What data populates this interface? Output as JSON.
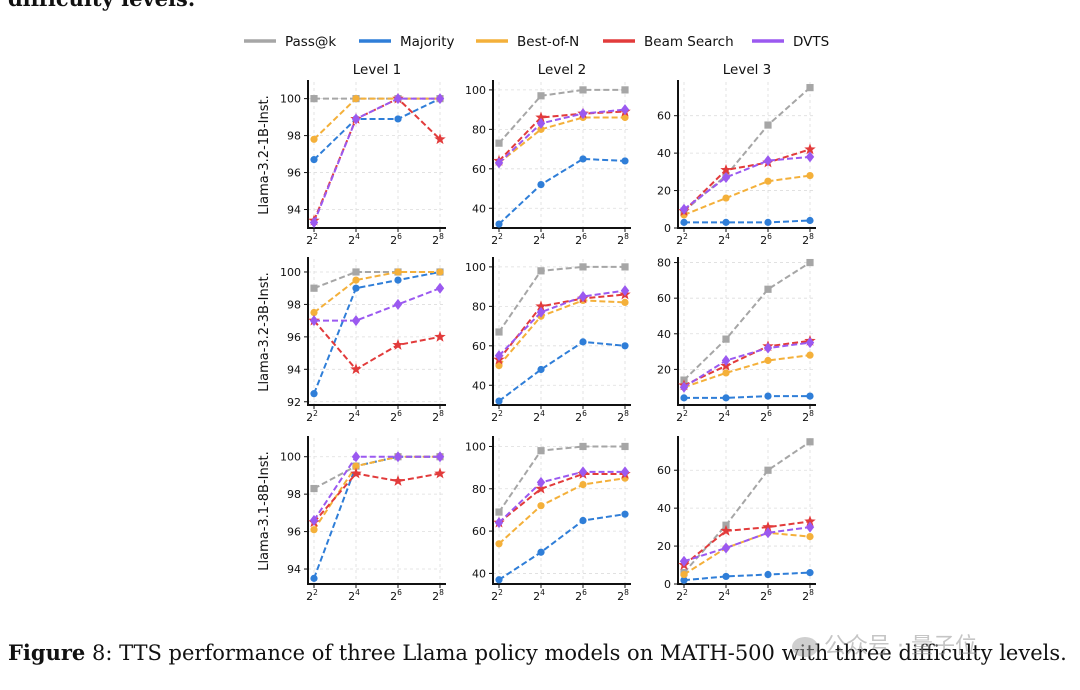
{
  "top_text": "difficulty levels.",
  "caption": {
    "label": "Figure",
    "number": "8:",
    "text": " TTS performance of three Llama policy models on MATH-500 with three difficulty levels."
  },
  "watermark": "公众号 · 量子位",
  "colors": {
    "Pass@k": "#a6a6a6",
    "Majority": "#2f7ed8",
    "Best-of-N": "#f4b03a",
    "Beam Search": "#e23b3b",
    "DVTS": "#9b59f0"
  },
  "chart_data": {
    "type": "line",
    "legend": [
      "Pass@k",
      "Majority",
      "Best-of-N",
      "Beam Search",
      "DVTS"
    ],
    "legend_placement": "top",
    "column_titles": [
      "Level 1",
      "Level 2",
      "Level 3"
    ],
    "row_labels": [
      "Llama-3.2-1B-Inst.",
      "Llama-3.2-3B-Inst.",
      "Llama-3.1-8B-Inst."
    ],
    "x_exponents": [
      2,
      4,
      6,
      8
    ],
    "x_tick_labels": [
      "2",
      "4",
      "6",
      "8"
    ],
    "grid": true,
    "panels": [
      {
        "row": 0,
        "col": 0,
        "ylim": [
          93,
          100.9
        ],
        "yticks": [
          94,
          96,
          98,
          100
        ],
        "series": {
          "Pass@k": [
            100,
            100,
            100,
            100
          ],
          "Majority": [
            96.7,
            98.9,
            98.9,
            100
          ],
          "Best-of-N": [
            97.8,
            100,
            100,
            100
          ],
          "Beam Search": [
            93.4,
            98.9,
            100,
            97.8
          ],
          "DVTS": [
            93.3,
            98.9,
            100,
            100
          ]
        }
      },
      {
        "row": 0,
        "col": 1,
        "ylim": [
          30,
          104
        ],
        "yticks": [
          40,
          60,
          80,
          100
        ],
        "series": {
          "Pass@k": [
            73,
            97,
            100,
            100
          ],
          "Majority": [
            32,
            52,
            65,
            64
          ],
          "Best-of-N": [
            63,
            80,
            86,
            86
          ],
          "Beam Search": [
            64,
            86,
            88,
            89
          ],
          "DVTS": [
            63,
            83,
            88,
            90
          ]
        }
      },
      {
        "row": 0,
        "col": 2,
        "ylim": [
          0,
          78
        ],
        "yticks": [
          0,
          20,
          40,
          60
        ],
        "series": {
          "Pass@k": [
            9,
            28,
            55,
            75
          ],
          "Majority": [
            3,
            3,
            3,
            4
          ],
          "Best-of-N": [
            7,
            16,
            25,
            28
          ],
          "Beam Search": [
            9,
            31,
            35,
            42
          ],
          "DVTS": [
            10,
            27,
            36,
            38
          ]
        }
      },
      {
        "row": 1,
        "col": 0,
        "ylim": [
          91.8,
          100.8
        ],
        "yticks": [
          92,
          94,
          96,
          98,
          100
        ],
        "series": {
          "Pass@k": [
            99,
            100,
            100,
            100
          ],
          "Majority": [
            92.5,
            99,
            99.5,
            100
          ],
          "Best-of-N": [
            97.5,
            99.5,
            100,
            100
          ],
          "Beam Search": [
            97,
            94,
            95.5,
            96
          ],
          "DVTS": [
            97,
            97,
            98,
            99
          ]
        }
      },
      {
        "row": 1,
        "col": 1,
        "ylim": [
          30,
          104
        ],
        "yticks": [
          40,
          60,
          80,
          100
        ],
        "series": {
          "Pass@k": [
            67,
            98,
            100,
            100
          ],
          "Majority": [
            32,
            48,
            62,
            60
          ],
          "Best-of-N": [
            50,
            75,
            83,
            82
          ],
          "Beam Search": [
            53,
            80,
            84,
            86
          ],
          "DVTS": [
            55,
            77,
            85,
            88
          ]
        }
      },
      {
        "row": 1,
        "col": 2,
        "ylim": [
          0,
          82
        ],
        "yticks": [
          20,
          40,
          60,
          80
        ],
        "series": {
          "Pass@k": [
            14,
            37,
            65,
            80
          ],
          "Majority": [
            4,
            4,
            5,
            5
          ],
          "Best-of-N": [
            10,
            18,
            25,
            28
          ],
          "Beam Search": [
            11,
            22,
            33,
            36
          ],
          "DVTS": [
            10,
            25,
            32,
            35
          ]
        }
      },
      {
        "row": 2,
        "col": 0,
        "ylim": [
          93.2,
          101
        ],
        "yticks": [
          94,
          96,
          98,
          100
        ],
        "series": {
          "Pass@k": [
            98.3,
            99.5,
            100,
            100
          ],
          "Majority": [
            93.5,
            99.5,
            100,
            100
          ],
          "Best-of-N": [
            96.1,
            99.5,
            100,
            100
          ],
          "Beam Search": [
            96.5,
            99.1,
            98.7,
            99.1
          ],
          "DVTS": [
            96.6,
            100,
            100,
            100
          ]
        }
      },
      {
        "row": 2,
        "col": 1,
        "ylim": [
          35,
          104
        ],
        "yticks": [
          40,
          60,
          80,
          100
        ],
        "series": {
          "Pass@k": [
            69,
            98,
            100,
            100
          ],
          "Majority": [
            37,
            50,
            65,
            68
          ],
          "Best-of-N": [
            54,
            72,
            82,
            85
          ],
          "Beam Search": [
            64,
            80,
            87,
            87
          ],
          "DVTS": [
            64,
            83,
            88,
            88
          ]
        }
      },
      {
        "row": 2,
        "col": 2,
        "ylim": [
          0,
          77
        ],
        "yticks": [
          0,
          20,
          40,
          60
        ],
        "series": {
          "Pass@k": [
            6,
            31,
            60,
            75
          ],
          "Majority": [
            2,
            4,
            5,
            6
          ],
          "Best-of-N": [
            5,
            19,
            27,
            25
          ],
          "Beam Search": [
            10,
            28,
            30,
            33
          ],
          "DVTS": [
            12,
            19,
            27,
            30
          ]
        }
      }
    ]
  }
}
